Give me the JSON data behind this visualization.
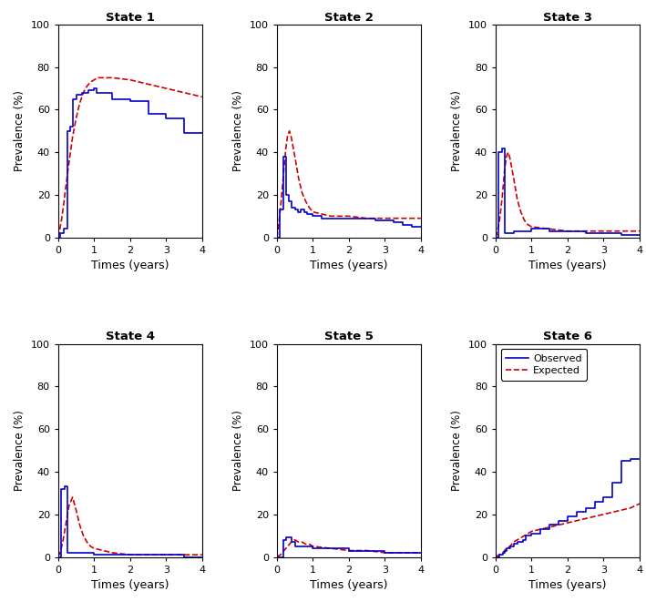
{
  "titles": [
    "State 1",
    "State 2",
    "State 3",
    "State 4",
    "State 5",
    "State 6"
  ],
  "xlabel": "Times (years)",
  "ylabel": "Prevalence (%)",
  "ylim": [
    0,
    100
  ],
  "xlim": [
    0,
    4
  ],
  "yticks": [
    0,
    20,
    40,
    60,
    80,
    100
  ],
  "xticks": [
    0,
    1,
    2,
    3,
    4
  ],
  "obs_color": "#0000CD",
  "exp_color": "#CC0000",
  "legend_labels": [
    "Observed",
    "Expected"
  ],
  "s1_obs_x": [
    0,
    0.05,
    0.05,
    0.15,
    0.15,
    0.25,
    0.25,
    0.33,
    0.33,
    0.42,
    0.42,
    0.5,
    0.5,
    0.67,
    0.67,
    0.83,
    0.83,
    1.0,
    1.0,
    1.08,
    1.08,
    1.5,
    1.5,
    2.0,
    2.0,
    2.5,
    2.5,
    3.0,
    3.0,
    3.5,
    3.5,
    4.0
  ],
  "s1_obs_y": [
    0,
    0,
    2,
    2,
    4,
    4,
    50,
    50,
    52,
    52,
    65,
    65,
    67,
    67,
    68,
    68,
    69,
    69,
    70,
    70,
    68,
    68,
    65,
    65,
    64,
    64,
    58,
    58,
    56,
    56,
    49,
    49
  ],
  "s1_exp_x": [
    0,
    0.05,
    0.1,
    0.15,
    0.2,
    0.3,
    0.4,
    0.5,
    0.6,
    0.7,
    0.8,
    0.9,
    1.0,
    1.1,
    1.2,
    1.5,
    2.0,
    2.5,
    3.0,
    3.5,
    4.0
  ],
  "s1_exp_y": [
    0,
    4,
    9,
    15,
    22,
    35,
    47,
    56,
    63,
    68,
    71,
    73,
    74,
    75,
    75,
    75,
    74,
    72,
    70,
    68,
    66
  ],
  "s2_obs_x": [
    0,
    0.08,
    0.08,
    0.17,
    0.17,
    0.25,
    0.25,
    0.33,
    0.33,
    0.42,
    0.42,
    0.5,
    0.5,
    0.58,
    0.58,
    0.67,
    0.67,
    0.75,
    0.75,
    0.83,
    0.83,
    1.0,
    1.0,
    1.25,
    1.25,
    1.5,
    1.5,
    1.75,
    1.75,
    2.0,
    2.0,
    2.25,
    2.25,
    2.5,
    2.5,
    2.75,
    2.75,
    3.0,
    3.0,
    3.25,
    3.25,
    3.5,
    3.5,
    3.75,
    3.75,
    4.0
  ],
  "s2_obs_y": [
    0,
    0,
    13,
    13,
    38,
    38,
    20,
    20,
    17,
    17,
    14,
    14,
    13,
    13,
    12,
    12,
    13,
    13,
    12,
    12,
    11,
    11,
    10,
    10,
    9,
    9,
    9,
    9,
    9,
    9,
    9,
    9,
    9,
    9,
    9,
    9,
    8,
    8,
    8,
    8,
    7,
    7,
    6,
    6,
    5,
    5
  ],
  "s2_exp_x": [
    0,
    0.05,
    0.1,
    0.15,
    0.2,
    0.25,
    0.3,
    0.35,
    0.4,
    0.5,
    0.6,
    0.7,
    0.8,
    0.9,
    1.0,
    1.5,
    2.0,
    2.5,
    3.0,
    3.5,
    4.0
  ],
  "s2_exp_y": [
    0,
    6,
    14,
    23,
    33,
    42,
    48,
    50,
    47,
    38,
    28,
    21,
    17,
    14,
    12,
    10,
    10,
    9,
    9,
    9,
    9
  ],
  "s3_obs_x": [
    0,
    0.08,
    0.08,
    0.17,
    0.17,
    0.25,
    0.25,
    0.5,
    0.5,
    0.75,
    0.75,
    1.0,
    1.0,
    1.5,
    1.5,
    2.0,
    2.0,
    2.5,
    2.5,
    3.0,
    3.0,
    3.5,
    3.5,
    4.0
  ],
  "s3_obs_y": [
    0,
    0,
    40,
    40,
    42,
    42,
    2,
    2,
    3,
    3,
    3,
    3,
    4,
    4,
    3,
    3,
    3,
    3,
    2,
    2,
    2,
    2,
    1,
    1
  ],
  "s3_exp_x": [
    0,
    0.05,
    0.1,
    0.15,
    0.2,
    0.25,
    0.3,
    0.35,
    0.4,
    0.5,
    0.6,
    0.7,
    0.8,
    0.9,
    1.0,
    1.5,
    2.0,
    2.5,
    3.0,
    3.5,
    4.0
  ],
  "s3_exp_y": [
    0,
    3,
    7,
    14,
    22,
    32,
    38,
    40,
    37,
    28,
    18,
    12,
    8,
    6,
    5,
    4,
    3,
    3,
    3,
    3,
    3
  ],
  "s4_obs_x": [
    0,
    0.08,
    0.08,
    0.17,
    0.17,
    0.25,
    0.25,
    0.5,
    0.5,
    1.0,
    1.0,
    1.5,
    1.5,
    2.0,
    2.0,
    2.5,
    2.5,
    3.0,
    3.0,
    3.5,
    3.5,
    4.0
  ],
  "s4_obs_y": [
    0,
    0,
    32,
    32,
    33,
    33,
    2,
    2,
    2,
    2,
    1,
    1,
    1,
    1,
    1,
    1,
    1,
    1,
    1,
    1,
    0,
    0
  ],
  "s4_exp_x": [
    0,
    0.05,
    0.1,
    0.15,
    0.2,
    0.25,
    0.3,
    0.4,
    0.5,
    0.6,
    0.7,
    0.8,
    0.9,
    1.0,
    1.5,
    2.0,
    2.5,
    3.0,
    3.5,
    4.0
  ],
  "s4_exp_y": [
    0,
    2,
    5,
    9,
    14,
    19,
    24,
    28,
    22,
    15,
    10,
    7,
    5,
    4,
    2,
    1,
    1,
    1,
    1,
    1
  ],
  "s5_obs_x": [
    0,
    0.17,
    0.17,
    0.25,
    0.25,
    0.42,
    0.42,
    0.5,
    0.5,
    1.0,
    1.0,
    1.5,
    1.5,
    2.0,
    2.0,
    2.5,
    2.5,
    3.0,
    3.0,
    4.0
  ],
  "s5_obs_y": [
    0,
    0,
    8,
    8,
    9,
    9,
    7,
    7,
    5,
    5,
    4,
    4,
    4,
    4,
    3,
    3,
    3,
    3,
    2,
    2
  ],
  "s5_exp_x": [
    0,
    0.1,
    0.2,
    0.3,
    0.4,
    0.5,
    0.6,
    0.7,
    0.8,
    0.9,
    1.0,
    1.5,
    2.0,
    2.5,
    3.0,
    3.5,
    4.0
  ],
  "s5_exp_y": [
    0,
    1,
    3,
    5,
    7,
    8,
    7,
    7,
    6,
    6,
    5,
    4,
    3,
    3,
    2,
    2,
    2
  ],
  "s6_obs_x": [
    0,
    0.1,
    0.1,
    0.2,
    0.2,
    0.25,
    0.25,
    0.3,
    0.3,
    0.4,
    0.4,
    0.5,
    0.5,
    0.6,
    0.6,
    0.75,
    0.75,
    0.83,
    0.83,
    1.0,
    1.0,
    1.25,
    1.25,
    1.5,
    1.5,
    1.75,
    1.75,
    2.0,
    2.0,
    2.25,
    2.25,
    2.5,
    2.5,
    2.75,
    2.75,
    3.0,
    3.0,
    3.25,
    3.25,
    3.5,
    3.5,
    3.75,
    3.75,
    4.0
  ],
  "s6_obs_y": [
    0,
    0,
    1,
    1,
    2,
    2,
    3,
    3,
    4,
    4,
    5,
    5,
    6,
    6,
    7,
    7,
    8,
    8,
    10,
    10,
    11,
    11,
    13,
    13,
    15,
    15,
    17,
    17,
    19,
    19,
    21,
    21,
    23,
    23,
    26,
    26,
    28,
    28,
    35,
    35,
    45,
    45,
    46,
    46
  ],
  "s6_exp_x": [
    0,
    0.1,
    0.2,
    0.3,
    0.4,
    0.5,
    0.6,
    0.7,
    0.8,
    0.9,
    1.0,
    1.25,
    1.5,
    1.75,
    2.0,
    2.25,
    2.5,
    2.75,
    3.0,
    3.25,
    3.5,
    3.75,
    4.0
  ],
  "s6_exp_y": [
    0,
    1,
    2,
    4,
    5,
    7,
    8,
    9,
    10,
    11,
    12,
    13,
    14,
    15,
    16,
    17,
    18,
    19,
    20,
    21,
    22,
    23,
    25
  ]
}
